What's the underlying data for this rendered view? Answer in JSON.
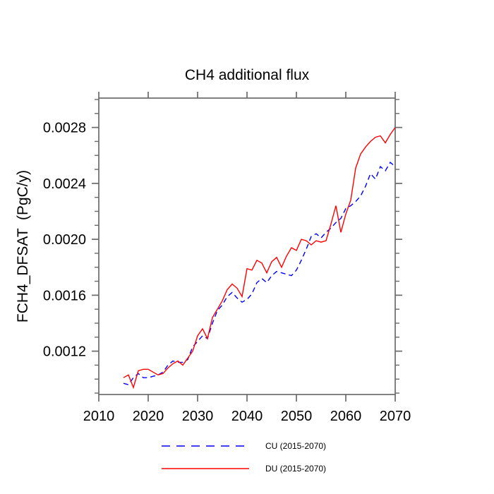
{
  "window": {
    "background": "#ffffff"
  },
  "chart_data": {
    "type": "line",
    "title": "CH4 additional flux",
    "ylabel": "FCH4_DFSAT  (PgC/y)",
    "xlabel": "",
    "xlim": [
      2010,
      2070
    ],
    "ylim": [
      0.00089,
      0.00301
    ],
    "grid": false,
    "axis_color": "#6b6b6b",
    "text_color": "#000000",
    "x_ticks": [
      2010,
      2020,
      2030,
      2040,
      2050,
      2060,
      2070
    ],
    "y_ticks": [
      0.0012,
      0.0016,
      0.002,
      0.0024,
      0.0028
    ],
    "y_tick_labels": [
      "0.0012",
      "0.0016",
      "0.0020",
      "0.0024",
      "0.0028"
    ],
    "y_minor_step": 0.0001,
    "legend_position": "bottom",
    "x": [
      2015,
      2016,
      2017,
      2018,
      2019,
      2020,
      2021,
      2022,
      2023,
      2024,
      2025,
      2026,
      2027,
      2028,
      2029,
      2030,
      2031,
      2032,
      2033,
      2034,
      2035,
      2036,
      2037,
      2038,
      2039,
      2040,
      2041,
      2042,
      2043,
      2044,
      2045,
      2046,
      2047,
      2048,
      2049,
      2050,
      2051,
      2052,
      2053,
      2054,
      2055,
      2056,
      2057,
      2058,
      2059,
      2060,
      2061,
      2062,
      2063,
      2064,
      2065,
      2066,
      2067,
      2068,
      2069,
      2070
    ],
    "series": [
      {
        "name": "CU (2015-2070)",
        "short_name": "CU",
        "color": "#0000ff",
        "style": "dashed",
        "values": [
          0.00097,
          0.00096,
          0.00101,
          0.00104,
          0.00101,
          0.00101,
          0.00102,
          0.00103,
          0.00105,
          0.0011,
          0.00113,
          0.00112,
          0.00112,
          0.00114,
          0.00123,
          0.00127,
          0.00131,
          0.00129,
          0.0014,
          0.00149,
          0.00153,
          0.00159,
          0.00162,
          0.00158,
          0.00155,
          0.00157,
          0.00161,
          0.00169,
          0.00172,
          0.00169,
          0.00174,
          0.00177,
          0.00176,
          0.00175,
          0.00174,
          0.00178,
          0.00185,
          0.00193,
          0.00202,
          0.00204,
          0.00201,
          0.00205,
          0.00208,
          0.00212,
          0.00215,
          0.00222,
          0.00224,
          0.00227,
          0.00231,
          0.00238,
          0.00247,
          0.00243,
          0.00252,
          0.00249,
          0.00255,
          0.00252
        ]
      },
      {
        "name": "DU (2015-2070)",
        "short_name": "DU",
        "color": "#ff0000",
        "style": "solid",
        "values": [
          0.00101,
          0.00103,
          0.00094,
          0.00106,
          0.00107,
          0.00107,
          0.00105,
          0.00103,
          0.00104,
          0.00108,
          0.00111,
          0.00113,
          0.0011,
          0.00115,
          0.0012,
          0.00131,
          0.00136,
          0.00129,
          0.00144,
          0.0015,
          0.00156,
          0.00164,
          0.00168,
          0.00165,
          0.00159,
          0.00179,
          0.00178,
          0.00185,
          0.00183,
          0.00176,
          0.00184,
          0.00187,
          0.0018,
          0.00188,
          0.00194,
          0.00192,
          0.002,
          0.00199,
          0.00196,
          0.00199,
          0.00198,
          0.00199,
          0.00211,
          0.00224,
          0.00205,
          0.00218,
          0.00228,
          0.00251,
          0.00261,
          0.00266,
          0.0027,
          0.00273,
          0.00274,
          0.00269,
          0.00275,
          0.0028
        ]
      }
    ]
  }
}
